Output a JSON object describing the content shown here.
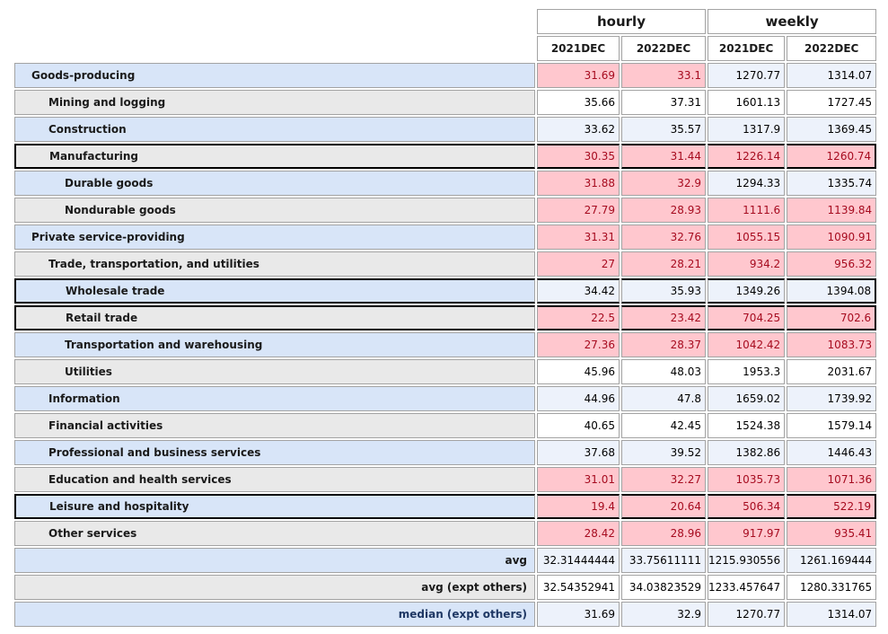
{
  "table": {
    "column_groups": [
      {
        "label": "hourly",
        "span": 2
      },
      {
        "label": "weekly",
        "span": 2
      }
    ],
    "column_headers": [
      "2021DEC",
      "2022DEC",
      "2021DEC",
      "2022DEC"
    ],
    "rows": [
      {
        "label": "Goods-producing",
        "indent": 1,
        "shade": "blue",
        "black_border": false,
        "summary": false,
        "values": [
          "31.69",
          "33.1",
          "1270.77",
          "1314.07"
        ],
        "highlighted": [
          true,
          true,
          false,
          false
        ]
      },
      {
        "label": "Mining and logging",
        "indent": 2,
        "shade": "gray",
        "black_border": false,
        "summary": false,
        "values": [
          "35.66",
          "37.31",
          "1601.13",
          "1727.45"
        ],
        "highlighted": [
          false,
          false,
          false,
          false
        ]
      },
      {
        "label": "Construction",
        "indent": 2,
        "shade": "blue",
        "black_border": false,
        "summary": false,
        "values": [
          "33.62",
          "35.57",
          "1317.9",
          "1369.45"
        ],
        "highlighted": [
          false,
          false,
          false,
          false
        ]
      },
      {
        "label": "Manufacturing",
        "indent": 2,
        "shade": "gray",
        "black_border": true,
        "summary": false,
        "values": [
          "30.35",
          "31.44",
          "1226.14",
          "1260.74"
        ],
        "highlighted": [
          true,
          true,
          true,
          true
        ]
      },
      {
        "label": "Durable goods",
        "indent": 3,
        "shade": "blue",
        "black_border": false,
        "summary": false,
        "values": [
          "31.88",
          "32.9",
          "1294.33",
          "1335.74"
        ],
        "highlighted": [
          true,
          true,
          false,
          false
        ]
      },
      {
        "label": "Nondurable goods",
        "indent": 3,
        "shade": "gray",
        "black_border": false,
        "summary": false,
        "values": [
          "27.79",
          "28.93",
          "1111.6",
          "1139.84"
        ],
        "highlighted": [
          true,
          true,
          true,
          true
        ]
      },
      {
        "label": "Private service-providing",
        "indent": 1,
        "shade": "blue",
        "black_border": false,
        "summary": false,
        "values": [
          "31.31",
          "32.76",
          "1055.15",
          "1090.91"
        ],
        "highlighted": [
          true,
          true,
          true,
          true
        ]
      },
      {
        "label": "Trade, transportation, and utilities",
        "indent": 2,
        "shade": "gray",
        "black_border": false,
        "summary": false,
        "values": [
          "27",
          "28.21",
          "934.2",
          "956.32"
        ],
        "highlighted": [
          true,
          true,
          true,
          true
        ]
      },
      {
        "label": "Wholesale trade",
        "indent": 3,
        "shade": "blue",
        "black_border": true,
        "summary": false,
        "values": [
          "34.42",
          "35.93",
          "1349.26",
          "1394.08"
        ],
        "highlighted": [
          false,
          false,
          false,
          false
        ]
      },
      {
        "label": "Retail trade",
        "indent": 3,
        "shade": "gray",
        "black_border": true,
        "summary": false,
        "values": [
          "22.5",
          "23.42",
          "704.25",
          "702.6"
        ],
        "highlighted": [
          true,
          true,
          true,
          true
        ]
      },
      {
        "label": "Transportation and warehousing",
        "indent": 3,
        "shade": "blue",
        "black_border": false,
        "summary": false,
        "values": [
          "27.36",
          "28.37",
          "1042.42",
          "1083.73"
        ],
        "highlighted": [
          true,
          true,
          true,
          true
        ]
      },
      {
        "label": "Utilities",
        "indent": 3,
        "shade": "gray",
        "black_border": false,
        "summary": false,
        "values": [
          "45.96",
          "48.03",
          "1953.3",
          "2031.67"
        ],
        "highlighted": [
          false,
          false,
          false,
          false
        ]
      },
      {
        "label": "Information",
        "indent": 2,
        "shade": "blue",
        "black_border": false,
        "summary": false,
        "values": [
          "44.96",
          "47.8",
          "1659.02",
          "1739.92"
        ],
        "highlighted": [
          false,
          false,
          false,
          false
        ]
      },
      {
        "label": "Financial activities",
        "indent": 2,
        "shade": "gray",
        "black_border": false,
        "summary": false,
        "values": [
          "40.65",
          "42.45",
          "1524.38",
          "1579.14"
        ],
        "highlighted": [
          false,
          false,
          false,
          false
        ]
      },
      {
        "label": "Professional and business services",
        "indent": 2,
        "shade": "blue",
        "black_border": false,
        "summary": false,
        "values": [
          "37.68",
          "39.52",
          "1382.86",
          "1446.43"
        ],
        "highlighted": [
          false,
          false,
          false,
          false
        ]
      },
      {
        "label": "Education and health services",
        "indent": 2,
        "shade": "gray",
        "black_border": false,
        "summary": false,
        "values": [
          "31.01",
          "32.27",
          "1035.73",
          "1071.36"
        ],
        "highlighted": [
          true,
          true,
          true,
          true
        ]
      },
      {
        "label": "Leisure and hospitality",
        "indent": 2,
        "shade": "blue",
        "black_border": true,
        "summary": false,
        "values": [
          "19.4",
          "20.64",
          "506.34",
          "522.19"
        ],
        "highlighted": [
          true,
          true,
          true,
          true
        ]
      },
      {
        "label": "Other services",
        "indent": 2,
        "shade": "gray",
        "black_border": false,
        "summary": false,
        "values": [
          "28.42",
          "28.96",
          "917.97",
          "935.41"
        ],
        "highlighted": [
          true,
          true,
          true,
          true
        ]
      },
      {
        "label": "avg",
        "indent": 0,
        "shade": "blue",
        "black_border": false,
        "summary": true,
        "values": [
          "32.31444444",
          "33.75611111",
          "1215.930556",
          "1261.169444"
        ],
        "highlighted": [
          false,
          false,
          false,
          false
        ]
      },
      {
        "label": "avg (expt others)",
        "indent": 0,
        "shade": "gray",
        "black_border": false,
        "summary": true,
        "values": [
          "32.54352941",
          "34.03823529",
          "1233.457647",
          "1280.331765"
        ],
        "highlighted": [
          false,
          false,
          false,
          false
        ]
      },
      {
        "label": "median (expt others)",
        "indent": 0,
        "shade": "blue",
        "black_border": false,
        "summary": true,
        "label_color": "navy",
        "values": [
          "31.69",
          "32.9",
          "1270.77",
          "1314.07"
        ],
        "highlighted": [
          false,
          false,
          false,
          false
        ]
      }
    ],
    "colors": {
      "grid_border": "#a3a3a3",
      "row_label_blue": "#d8e5f8",
      "row_label_gray": "#e9e9e9",
      "data_cell_blue": "#edf2fb",
      "data_cell_white": "#ffffff",
      "highlight_fill": "#ffc7ce",
      "highlight_text": "#a60b1f",
      "label_text": "#1a1a1a",
      "median_label_text": "#1f3864",
      "selection_border": "#000000"
    }
  },
  "chart_data": {
    "type": "table",
    "column_groups": [
      "hourly",
      "hourly",
      "weekly",
      "weekly"
    ],
    "columns": [
      "hourly 2021DEC",
      "hourly 2022DEC",
      "weekly 2021DEC",
      "weekly 2022DEC"
    ],
    "rows": [
      {
        "label": "Goods-producing",
        "values": [
          31.69,
          33.1,
          1270.77,
          1314.07
        ]
      },
      {
        "label": "Mining and logging",
        "values": [
          35.66,
          37.31,
          1601.13,
          1727.45
        ]
      },
      {
        "label": "Construction",
        "values": [
          33.62,
          35.57,
          1317.9,
          1369.45
        ]
      },
      {
        "label": "Manufacturing",
        "values": [
          30.35,
          31.44,
          1226.14,
          1260.74
        ]
      },
      {
        "label": "Durable goods",
        "values": [
          31.88,
          32.9,
          1294.33,
          1335.74
        ]
      },
      {
        "label": "Nondurable goods",
        "values": [
          27.79,
          28.93,
          1111.6,
          1139.84
        ]
      },
      {
        "label": "Private service-providing",
        "values": [
          31.31,
          32.76,
          1055.15,
          1090.91
        ]
      },
      {
        "label": "Trade, transportation, and utilities",
        "values": [
          27,
          28.21,
          934.2,
          956.32
        ]
      },
      {
        "label": "Wholesale trade",
        "values": [
          34.42,
          35.93,
          1349.26,
          1394.08
        ]
      },
      {
        "label": "Retail trade",
        "values": [
          22.5,
          23.42,
          704.25,
          702.6
        ]
      },
      {
        "label": "Transportation and warehousing",
        "values": [
          27.36,
          28.37,
          1042.42,
          1083.73
        ]
      },
      {
        "label": "Utilities",
        "values": [
          45.96,
          48.03,
          1953.3,
          2031.67
        ]
      },
      {
        "label": "Information",
        "values": [
          44.96,
          47.8,
          1659.02,
          1739.92
        ]
      },
      {
        "label": "Financial activities",
        "values": [
          40.65,
          42.45,
          1524.38,
          1579.14
        ]
      },
      {
        "label": "Professional and business services",
        "values": [
          37.68,
          39.52,
          1382.86,
          1446.43
        ]
      },
      {
        "label": "Education and health services",
        "values": [
          31.01,
          32.27,
          1035.73,
          1071.36
        ]
      },
      {
        "label": "Leisure and hospitality",
        "values": [
          19.4,
          20.64,
          506.34,
          522.19
        ]
      },
      {
        "label": "Other services",
        "values": [
          28.42,
          28.96,
          917.97,
          935.41
        ]
      },
      {
        "label": "avg",
        "values": [
          32.31444444,
          33.75611111,
          1215.930556,
          1261.169444
        ]
      },
      {
        "label": "avg (expt others)",
        "values": [
          32.54352941,
          34.03823529,
          1233.457647,
          1280.331765
        ]
      },
      {
        "label": "median (expt others)",
        "values": [
          31.69,
          32.9,
          1270.77,
          1314.07
        ]
      }
    ]
  }
}
